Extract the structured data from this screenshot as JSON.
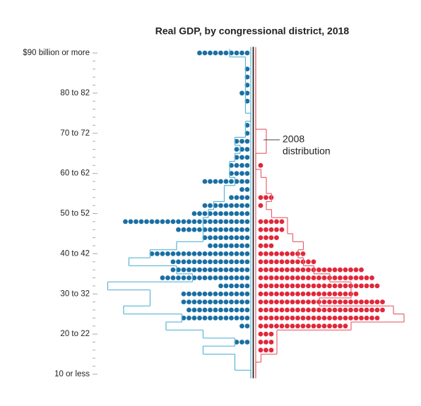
{
  "chart_data": {
    "type": "dot-pyramid",
    "title": "Real GDP, by congressional district, 2018",
    "categories": [
      "$90 billion or more",
      null,
      null,
      null,
      null,
      "80 to 82",
      null,
      null,
      null,
      null,
      "70 to 72",
      null,
      null,
      null,
      null,
      "60 to 62",
      null,
      null,
      null,
      null,
      "50 to 52",
      null,
      null,
      null,
      null,
      "40 to 42",
      null,
      null,
      null,
      null,
      "30 to 32",
      null,
      null,
      null,
      null,
      "20 to 22",
      null,
      null,
      null,
      null,
      "10 or less"
    ],
    "series": [
      {
        "color": "#1a6fa3",
        "outline_color": "#5ab4d6",
        "side": "left",
        "values": [
          10,
          0,
          1,
          1,
          1,
          2,
          1,
          0,
          0,
          1,
          1,
          3,
          3,
          3,
          4,
          4,
          9,
          2,
          4,
          9,
          11,
          24,
          14,
          9,
          8,
          19,
          15,
          15,
          17,
          6,
          13,
          13,
          12,
          13,
          2,
          0,
          3,
          0,
          0,
          0,
          0
        ],
        "outline_2008": [
          4,
          1,
          1,
          1,
          1,
          1,
          1,
          1,
          0,
          1,
          1,
          3,
          2,
          3,
          4,
          4,
          3,
          5,
          5,
          7,
          8,
          9,
          9,
          9,
          14,
          19,
          23,
          14,
          11,
          27,
          19,
          19,
          24,
          13,
          16,
          9,
          3,
          9,
          3,
          3,
          0
        ]
      },
      {
        "color": "#e0283a",
        "outline_color": "#e8616c",
        "side": "right",
        "values": [
          0,
          0,
          0,
          0,
          0,
          0,
          0,
          0,
          0,
          0,
          0,
          0,
          0,
          0,
          1,
          0,
          0,
          0,
          3,
          1,
          0,
          5,
          5,
          4,
          3,
          9,
          11,
          20,
          22,
          23,
          19,
          24,
          24,
          23,
          17,
          3,
          3,
          3,
          0,
          0,
          0
        ],
        "outline_2008": [
          0,
          0,
          0,
          0,
          0,
          0,
          0,
          0,
          0,
          0,
          2,
          2,
          2,
          0,
          0,
          1,
          2,
          2,
          3,
          2,
          3,
          6,
          6,
          7,
          9,
          8,
          9,
          11,
          14,
          18,
          18,
          12,
          26,
          28,
          18,
          4,
          4,
          4,
          1,
          0,
          0
        ]
      }
    ],
    "annotation_lines": [
      "2008",
      "distribution"
    ]
  }
}
